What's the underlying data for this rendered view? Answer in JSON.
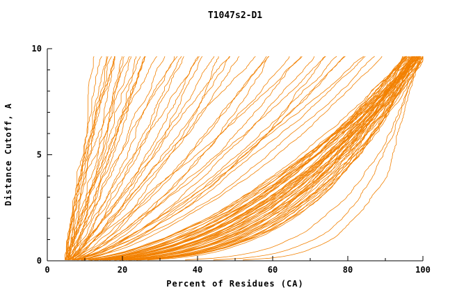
{
  "chart_data": {
    "type": "line",
    "title": "T1047s2-D1",
    "xlabel": "Percent of Residues (CA)",
    "ylabel": "Distance Cutoff, A",
    "xlim": [
      0,
      100
    ],
    "ylim": [
      0,
      10
    ],
    "x_ticks": [
      0,
      20,
      40,
      60,
      80,
      100
    ],
    "y_ticks": [
      0,
      5,
      10
    ],
    "x_minor_step": 10,
    "y_minor_step": 1,
    "grid": false,
    "legend": "none",
    "color": "#F28000",
    "curve_top": 9.65,
    "series_format": [
      "x_percent_at_cutoff_0",
      "x_percent_at_cutoff_10",
      "shape_exponent"
    ],
    "series": [
      [
        5.2,
        99.5,
        0.32
      ],
      [
        6.1,
        98.8,
        0.41
      ],
      [
        4.8,
        97.6,
        0.36
      ],
      [
        7.3,
        99.2,
        0.5
      ],
      [
        5.5,
        96.4,
        0.45
      ],
      [
        6.8,
        99.8,
        0.3
      ],
      [
        5.0,
        95.2,
        0.55
      ],
      [
        8.1,
        98.2,
        0.38
      ],
      [
        4.6,
        99.0,
        0.42
      ],
      [
        7.7,
        97.1,
        0.33
      ],
      [
        5.9,
        99.6,
        0.48
      ],
      [
        6.4,
        94.8,
        0.52
      ],
      [
        5.3,
        98.5,
        0.29
      ],
      [
        7.0,
        96.9,
        0.44
      ],
      [
        4.9,
        99.3,
        0.57
      ],
      [
        6.6,
        97.8,
        0.35
      ],
      [
        5.7,
        99.9,
        0.4
      ],
      [
        8.4,
        95.7,
        0.5
      ],
      [
        5.1,
        98.0,
        0.31
      ],
      [
        6.2,
        96.1,
        0.46
      ],
      [
        7.5,
        99.4,
        0.54
      ],
      [
        4.7,
        97.3,
        0.39
      ],
      [
        6.9,
        98.9,
        0.28
      ],
      [
        5.4,
        95.9,
        0.49
      ],
      [
        7.2,
        99.1,
        0.37
      ],
      [
        5.8,
        96.7,
        0.43
      ],
      [
        6.3,
        99.7,
        0.56
      ],
      [
        4.5,
        98.3,
        0.34
      ],
      [
        7.9,
        97.5,
        0.47
      ],
      [
        5.6,
        99.2,
        0.3
      ],
      [
        6.7,
        95.4,
        0.53
      ],
      [
        5.2,
        98.6,
        0.41
      ],
      [
        7.4,
        96.3,
        0.36
      ],
      [
        6.0,
        99.5,
        0.51
      ],
      [
        4.8,
        97.0,
        0.45
      ],
      [
        8.2,
        98.8,
        0.33
      ],
      [
        5.5,
        99.0,
        0.58
      ],
      [
        6.5,
        94.5,
        0.4
      ],
      [
        5.0,
        97.7,
        0.29
      ],
      [
        7.1,
        99.6,
        0.44
      ],
      [
        5.9,
        96.0,
        0.5
      ],
      [
        6.8,
        98.1,
        0.38
      ],
      [
        4.6,
        99.4,
        0.55
      ],
      [
        7.6,
        95.5,
        0.42
      ],
      [
        5.3,
        98.4,
        0.32
      ],
      [
        6.1,
        99.8,
        0.47
      ],
      [
        7.8,
        97.2,
        0.36
      ],
      [
        5.7,
        99.1,
        0.52
      ],
      [
        6.4,
        96.6,
        0.3
      ],
      [
        4.9,
        98.7,
        0.46
      ],
      [
        7.0,
        99.3,
        0.39
      ],
      [
        5.6,
        97.9,
        0.57
      ],
      [
        6.6,
        99.0,
        0.34
      ],
      [
        5.1,
        96.2,
        0.48
      ],
      [
        7.3,
        98.5,
        0.43
      ],
      [
        5.4,
        88.0,
        0.62
      ],
      [
        6.0,
        84.5,
        0.7
      ],
      [
        5.0,
        80.2,
        0.66
      ],
      [
        6.8,
        76.8,
        0.75
      ],
      [
        5.6,
        73.5,
        0.82
      ],
      [
        7.2,
        70.1,
        0.68
      ],
      [
        5.2,
        66.9,
        0.9
      ],
      [
        6.4,
        63.4,
        0.74
      ],
      [
        5.8,
        60.0,
        0.85
      ],
      [
        6.9,
        57.2,
        0.78
      ],
      [
        5.3,
        54.6,
        0.95
      ],
      [
        6.2,
        51.8,
        0.8
      ],
      [
        5.7,
        49.1,
        1.0
      ],
      [
        7.0,
        46.5,
        0.72
      ],
      [
        5.1,
        44.0,
        0.88
      ],
      [
        6.5,
        41.6,
        1.05
      ],
      [
        5.5,
        39.3,
        0.76
      ],
      [
        6.1,
        37.1,
        0.92
      ],
      [
        5.9,
        35.0,
        1.1
      ],
      [
        6.6,
        33.0,
        0.84
      ],
      [
        5.2,
        31.2,
        0.98
      ],
      [
        6.3,
        58.5,
        0.64
      ],
      [
        5.6,
        68.0,
        0.71
      ],
      [
        6.7,
        74.2,
        0.6
      ],
      [
        5.4,
        79.0,
        0.69
      ],
      [
        6.0,
        83.0,
        0.77
      ],
      [
        5.8,
        86.5,
        0.65
      ],
      [
        6.4,
        48.0,
        0.86
      ],
      [
        5.3,
        42.5,
        0.73
      ],
      [
        6.2,
        36.0,
        0.81
      ],
      [
        4.8,
        13.5,
        1.0
      ],
      [
        5.2,
        14.8,
        0.9
      ],
      [
        4.6,
        16.0,
        1.1
      ],
      [
        5.5,
        17.3,
        0.85
      ],
      [
        5.0,
        18.6,
        1.2
      ],
      [
        5.8,
        20.0,
        0.95
      ],
      [
        4.7,
        21.4,
        1.05
      ],
      [
        5.3,
        22.8,
        1.3
      ],
      [
        5.6,
        24.2,
        0.88
      ],
      [
        4.9,
        25.6,
        1.15
      ],
      [
        5.4,
        27.0,
        0.92
      ],
      [
        5.1,
        28.5,
        1.25
      ],
      [
        4.8,
        15.4,
        1.35
      ],
      [
        5.7,
        19.2,
        0.8
      ],
      [
        5.0,
        23.5,
        1.08
      ],
      [
        5.5,
        26.2,
        0.98
      ],
      [
        4.6,
        17.9,
        1.18
      ],
      [
        5.2,
        21.0,
        0.83
      ],
      [
        5.0,
        99.7,
        0.16
      ],
      [
        5.5,
        98.5,
        0.2
      ],
      [
        6.0,
        100.0,
        0.13
      ]
    ]
  }
}
